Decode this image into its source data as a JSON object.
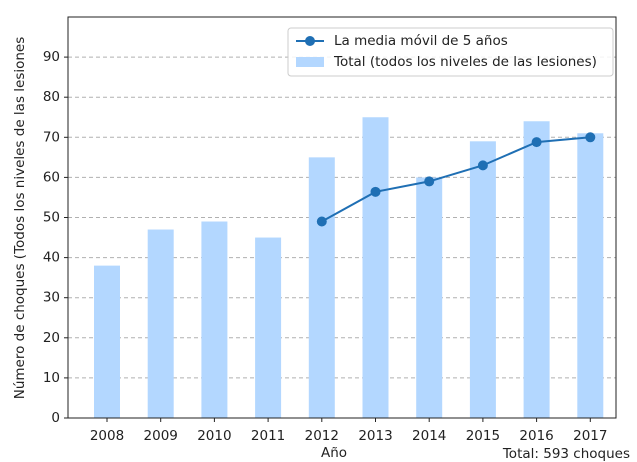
{
  "chart_data": {
    "type": "bar",
    "xlabel": "Año",
    "ylabel": "Número de choques (Todos los niveles de las lesiones",
    "annotation": "Total: 593 choques",
    "categories": [
      "2008",
      "2009",
      "2010",
      "2011",
      "2012",
      "2013",
      "2014",
      "2015",
      "2016",
      "2017"
    ],
    "series": [
      {
        "name": "La media móvil de 5 años",
        "type": "line",
        "color": "#1f6fb4",
        "values": [
          null,
          null,
          null,
          null,
          49,
          56.4,
          59,
          63,
          68.8,
          70
        ]
      },
      {
        "name": "Total (todos los niveles de las lesiones)",
        "type": "bar",
        "color": "#b3d7ff",
        "values": [
          38,
          47,
          49,
          45,
          65,
          75,
          60,
          69,
          74,
          71
        ]
      }
    ],
    "ylim": [
      0,
      100
    ],
    "yticks": [
      0,
      10,
      20,
      30,
      40,
      50,
      60,
      70,
      80,
      90
    ],
    "grid": true,
    "legend": "upper right"
  }
}
